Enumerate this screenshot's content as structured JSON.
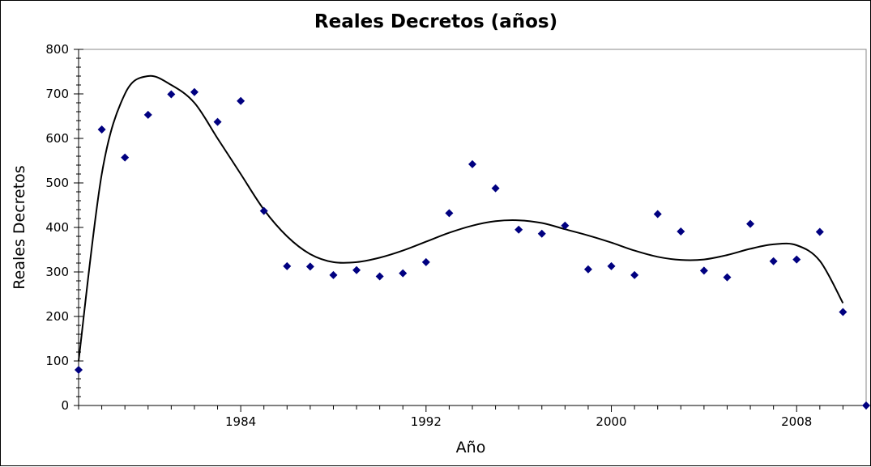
{
  "chart_data": {
    "type": "scatter",
    "title": "Reales Decretos (años)",
    "xlabel": "Año",
    "ylabel": "Reales Decretos",
    "xlim": [
      1977,
      2011
    ],
    "ylim": [
      0,
      800
    ],
    "x_tick_labels": [
      "1984",
      "1992",
      "2000",
      "2008"
    ],
    "y_tick_labels": [
      "0",
      "100",
      "200",
      "300",
      "400",
      "500",
      "600",
      "700",
      "800"
    ],
    "marker_color": "#000080",
    "trend_color": "#000000",
    "grid": false,
    "legend": "none",
    "series": [
      {
        "marker": "diamond",
        "x": [
          1977,
          1978,
          1979,
          1980,
          1981,
          1982,
          1983,
          1984,
          1985,
          1986,
          1987,
          1988,
          1989,
          1990,
          1991,
          1992,
          1993,
          1994,
          1995,
          1996,
          1997,
          1998,
          1999,
          2000,
          2001,
          2002,
          2003,
          2004,
          2005,
          2006,
          2007,
          2008,
          2009,
          2010,
          2011
        ],
        "values": [
          80,
          620,
          557,
          653,
          699,
          704,
          637,
          684,
          437,
          313,
          312,
          293,
          304,
          290,
          297,
          322,
          432,
          542,
          488,
          395,
          386,
          404,
          306,
          313,
          293,
          430,
          391,
          303,
          288,
          408,
          324,
          328,
          390,
          210,
          0
        ]
      }
    ],
    "trendline": {
      "type": "smooth",
      "x": [
        1977,
        1978,
        1979,
        1980,
        1981,
        1982,
        1983,
        1984,
        1985,
        1986,
        1987,
        1988,
        1989,
        1990,
        1991,
        1992,
        1993,
        1994,
        1995,
        1996,
        1997,
        1998,
        1999,
        2000,
        2001,
        2002,
        2003,
        2004,
        2005,
        2006,
        2007,
        2008,
        2009,
        2010
      ],
      "values": [
        100,
        520,
        700,
        740,
        720,
        680,
        600,
        520,
        440,
        380,
        340,
        322,
        322,
        332,
        348,
        368,
        388,
        404,
        414,
        416,
        410,
        396,
        382,
        366,
        348,
        334,
        327,
        328,
        338,
        352,
        362,
        360,
        325,
        230
      ]
    }
  }
}
